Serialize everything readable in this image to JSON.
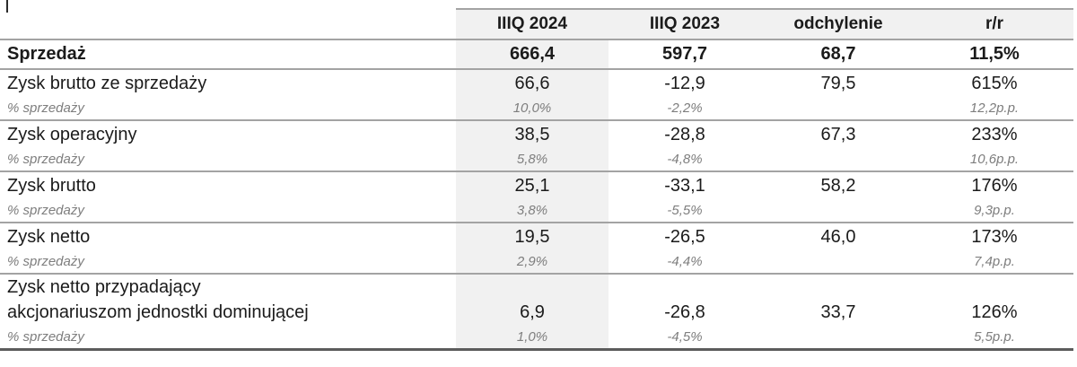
{
  "artifact": {
    "description": "text-cursor mark at top-left"
  },
  "colors": {
    "shade_fill": "#f1f1f1",
    "grid_line": "#a3a3a3",
    "bottom_line": "#5c5c5c",
    "text_main": "#1b1b1b",
    "text_sub": "#7e7e7e"
  },
  "table": {
    "header": [
      "",
      "IIIQ 2024",
      "IIIQ 2023",
      "odchylenie",
      "r/r"
    ],
    "total": {
      "label": "Sprzedaż",
      "v1": "666,4",
      "v2": "597,7",
      "v3": "68,7",
      "v4": "11,5%"
    },
    "groups": [
      {
        "label": "Zysk brutto ze sprzedaży",
        "label2": "",
        "v1": "66,6",
        "v2": "-12,9",
        "v3": "79,5",
        "v4": "615%",
        "sub": {
          "label": "% sprzedaży",
          "v1": "10,0%",
          "v2": "-2,2%",
          "v3": "",
          "v4": "12,2p.p."
        }
      },
      {
        "label": "Zysk operacyjny",
        "label2": "",
        "v1": "38,5",
        "v2": "-28,8",
        "v3": "67,3",
        "v4": "233%",
        "sub": {
          "label": "% sprzedaży",
          "v1": "5,8%",
          "v2": "-4,8%",
          "v3": "",
          "v4": "10,6p.p."
        }
      },
      {
        "label": "Zysk brutto",
        "label2": "",
        "v1": "25,1",
        "v2": "-33,1",
        "v3": "58,2",
        "v4": "176%",
        "sub": {
          "label": "% sprzedaży",
          "v1": "3,8%",
          "v2": "-5,5%",
          "v3": "",
          "v4": "9,3p.p."
        }
      },
      {
        "label": "Zysk netto",
        "label2": "",
        "v1": "19,5",
        "v2": "-26,5",
        "v3": "46,0",
        "v4": "173%",
        "sub": {
          "label": "% sprzedaży",
          "v1": "2,9%",
          "v2": "-4,4%",
          "v3": "",
          "v4": "7,4p.p."
        }
      },
      {
        "label": "Zysk netto przypadający",
        "label2": "akcjonariuszom jednostki dominującej",
        "v1": "6,9",
        "v2": "-26,8",
        "v3": "33,7",
        "v4": "126%",
        "sub": {
          "label": "% sprzedaży",
          "v1": "1,0%",
          "v2": "-4,5%",
          "v3": "",
          "v4": "5,5p.p."
        }
      }
    ]
  }
}
